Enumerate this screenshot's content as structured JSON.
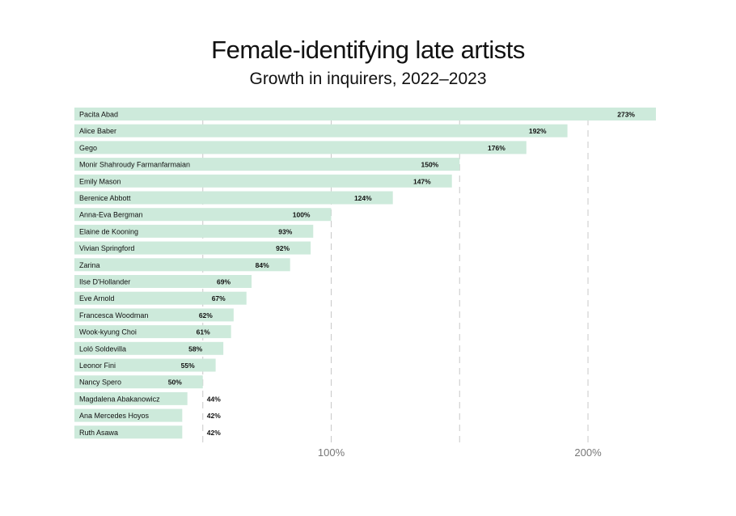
{
  "chart_data": {
    "type": "bar",
    "orientation": "horizontal",
    "title": "Female-identifying late artists",
    "subtitle": "Growth in inquirers, 2022–2023",
    "xlabel": "",
    "ylabel": "",
    "xlim": [
      0,
      227
    ],
    "grid": true,
    "gridlines": [
      50,
      100,
      150,
      200
    ],
    "tick_values": [
      100,
      200
    ],
    "tick_labels": [
      "100%",
      "200%"
    ],
    "categories": [
      "Pacita Abad",
      "Alice Baber",
      "Gego",
      "Monir Shahroudy Farmanfarmaian",
      "Emily Mason",
      "Berenice Abbott",
      "Anna-Eva Bergman",
      "Elaine de Kooning",
      "Vivian Springford",
      "Zarina",
      "Ilse D'Hollander",
      "Eve Arnold",
      "Francesca Woodman",
      "Wook-kyung Choi",
      "Loló Soldevilla",
      "Leonor Fini",
      "Nancy Spero",
      "Magdalena Abakanowicz",
      "Ana Mercedes Hoyos",
      "Ruth Asawa"
    ],
    "values": [
      273,
      192,
      176,
      150,
      147,
      124,
      100,
      93,
      92,
      84,
      69,
      67,
      62,
      61,
      58,
      55,
      50,
      44,
      42,
      42
    ],
    "value_labels": [
      "273%",
      "192%",
      "176%",
      "150%",
      "147%",
      "124%",
      "100%",
      "93%",
      "92%",
      "84%",
      "69%",
      "67%",
      "62%",
      "61%",
      "58%",
      "55%",
      "50%",
      "44%",
      "42%",
      "42%"
    ],
    "bar_color": "#cdeadb"
  }
}
